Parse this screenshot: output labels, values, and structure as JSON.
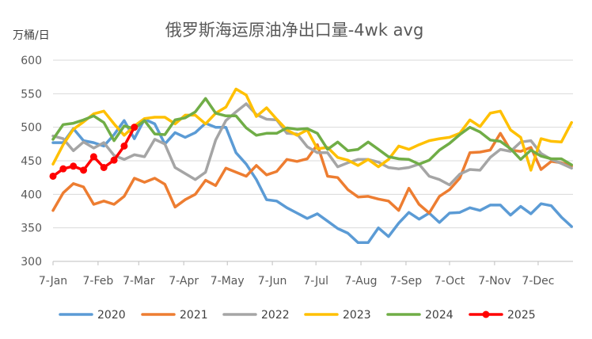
{
  "chart_data": {
    "type": "line",
    "title": "俄罗斯海运原油净出口量-4wk avg",
    "ylabel": "万桶/日",
    "xlabel": "",
    "ylim": [
      300,
      600
    ],
    "yticks": [
      300,
      350,
      400,
      450,
      500,
      550,
      600
    ],
    "xlim": [
      "2025-01-07",
      "2025-12-31"
    ],
    "xtick_labels": [
      "7-Jan",
      "7-Feb",
      "7-Mar",
      "7-Apr",
      "7-May",
      "7-Jun",
      "7-Jul",
      "7-Aug",
      "7-Sep",
      "7-Oct",
      "7-Nov",
      "7-Dec"
    ],
    "xtick_dates": [
      "2025-01-07",
      "2025-02-07",
      "2025-03-07",
      "2025-04-07",
      "2025-05-07",
      "2025-06-07",
      "2025-07-07",
      "2025-08-07",
      "2025-09-07",
      "2025-10-07",
      "2025-11-07",
      "2025-12-07"
    ],
    "grid": true,
    "legend_position": "bottom",
    "series": [
      {
        "name": "2020",
        "color": "#5B9BD5",
        "markers": false,
        "x": [
          "2025-01-07",
          "2025-01-14",
          "2025-01-21",
          "2025-01-28",
          "2025-02-04",
          "2025-02-11",
          "2025-02-18",
          "2025-02-25",
          "2025-03-04",
          "2025-03-11",
          "2025-03-18",
          "2025-03-25",
          "2025-04-01",
          "2025-04-08",
          "2025-04-15",
          "2025-04-22",
          "2025-04-29",
          "2025-05-06",
          "2025-05-13",
          "2025-05-20",
          "2025-05-27",
          "2025-06-03",
          "2025-06-10",
          "2025-06-17",
          "2025-06-24",
          "2025-07-01",
          "2025-07-08",
          "2025-07-15",
          "2025-07-22",
          "2025-07-29",
          "2025-08-05",
          "2025-08-12",
          "2025-08-19",
          "2025-08-26",
          "2025-09-02",
          "2025-09-09",
          "2025-09-16",
          "2025-09-23",
          "2025-09-30",
          "2025-10-07",
          "2025-10-14",
          "2025-10-21",
          "2025-10-28",
          "2025-11-04",
          "2025-11-11",
          "2025-11-18",
          "2025-11-25",
          "2025-12-02",
          "2025-12-09",
          "2025-12-16",
          "2025-12-23",
          "2025-12-30"
        ],
        "values": [
          477,
          477,
          498,
          480,
          477,
          472,
          489,
          510,
          483,
          512,
          505,
          475,
          492,
          485,
          492,
          506,
          500,
          500,
          462,
          445,
          422,
          392,
          390,
          380,
          372,
          364,
          371,
          360,
          349,
          342,
          328,
          328,
          350,
          337,
          357,
          373,
          363,
          372,
          358,
          372,
          373,
          380,
          376,
          384,
          384,
          369,
          382,
          371,
          386,
          383,
          366,
          352
        ]
      },
      {
        "name": "2021",
        "color": "#ED7D31",
        "markers": false,
        "x": [
          "2025-01-07",
          "2025-01-14",
          "2025-01-21",
          "2025-01-28",
          "2025-02-04",
          "2025-02-11",
          "2025-02-18",
          "2025-02-25",
          "2025-03-04",
          "2025-03-11",
          "2025-03-18",
          "2025-03-25",
          "2025-04-01",
          "2025-04-08",
          "2025-04-15",
          "2025-04-22",
          "2025-04-29",
          "2025-05-06",
          "2025-05-13",
          "2025-05-20",
          "2025-05-27",
          "2025-06-03",
          "2025-06-10",
          "2025-06-17",
          "2025-06-24",
          "2025-07-01",
          "2025-07-08",
          "2025-07-15",
          "2025-07-22",
          "2025-07-29",
          "2025-08-05",
          "2025-08-12",
          "2025-08-19",
          "2025-08-26",
          "2025-09-02",
          "2025-09-09",
          "2025-09-16",
          "2025-09-23",
          "2025-09-30",
          "2025-10-07",
          "2025-10-14",
          "2025-10-21",
          "2025-10-28",
          "2025-11-04",
          "2025-11-11",
          "2025-11-18",
          "2025-11-25",
          "2025-12-02",
          "2025-12-09",
          "2025-12-16",
          "2025-12-23",
          "2025-12-30"
        ],
        "values": [
          376,
          402,
          416,
          411,
          385,
          390,
          385,
          397,
          424,
          418,
          424,
          415,
          381,
          392,
          400,
          421,
          413,
          439,
          433,
          427,
          443,
          429,
          434,
          452,
          449,
          453,
          474,
          427,
          425,
          407,
          396,
          397,
          393,
          390,
          376,
          409,
          385,
          372,
          397,
          407,
          424,
          462,
          463,
          466,
          491,
          466,
          464,
          470,
          437,
          449,
          447,
          442
        ]
      },
      {
        "name": "2022",
        "color": "#A5A5A5",
        "markers": false,
        "x": [
          "2025-01-07",
          "2025-01-14",
          "2025-01-21",
          "2025-01-28",
          "2025-02-04",
          "2025-02-11",
          "2025-02-18",
          "2025-02-25",
          "2025-03-04",
          "2025-03-11",
          "2025-03-18",
          "2025-03-25",
          "2025-04-01",
          "2025-04-08",
          "2025-04-15",
          "2025-04-22",
          "2025-04-29",
          "2025-05-06",
          "2025-05-13",
          "2025-05-20",
          "2025-05-27",
          "2025-06-03",
          "2025-06-10",
          "2025-06-17",
          "2025-06-24",
          "2025-07-01",
          "2025-07-08",
          "2025-07-15",
          "2025-07-22",
          "2025-07-29",
          "2025-08-05",
          "2025-08-12",
          "2025-08-19",
          "2025-08-26",
          "2025-09-02",
          "2025-09-09",
          "2025-09-16",
          "2025-09-23",
          "2025-09-30",
          "2025-10-07",
          "2025-10-14",
          "2025-10-21",
          "2025-10-28",
          "2025-11-04",
          "2025-11-11",
          "2025-11-18",
          "2025-11-25",
          "2025-12-02",
          "2025-12-09",
          "2025-12-16",
          "2025-12-23",
          "2025-12-30"
        ],
        "values": [
          487,
          483,
          465,
          478,
          469,
          477,
          458,
          452,
          459,
          456,
          482,
          475,
          440,
          431,
          422,
          433,
          481,
          510,
          523,
          535,
          519,
          512,
          511,
          491,
          490,
          471,
          462,
          462,
          441,
          447,
          452,
          452,
          448,
          440,
          438,
          440,
          445,
          427,
          422,
          414,
          430,
          437,
          436,
          455,
          467,
          464,
          478,
          480,
          461,
          452,
          446,
          439
        ]
      },
      {
        "name": "2023",
        "color": "#FFC000",
        "markers": false,
        "x": [
          "2025-01-07",
          "2025-01-14",
          "2025-01-21",
          "2025-01-28",
          "2025-02-04",
          "2025-02-11",
          "2025-02-18",
          "2025-02-25",
          "2025-03-04",
          "2025-03-11",
          "2025-03-18",
          "2025-03-25",
          "2025-04-01",
          "2025-04-08",
          "2025-04-15",
          "2025-04-22",
          "2025-04-29",
          "2025-05-06",
          "2025-05-13",
          "2025-05-20",
          "2025-05-27",
          "2025-06-03",
          "2025-06-10",
          "2025-06-17",
          "2025-06-24",
          "2025-07-01",
          "2025-07-08",
          "2025-07-15",
          "2025-07-22",
          "2025-07-29",
          "2025-08-05",
          "2025-08-12",
          "2025-08-19",
          "2025-08-26",
          "2025-09-02",
          "2025-09-09",
          "2025-09-16",
          "2025-09-23",
          "2025-09-30",
          "2025-10-07",
          "2025-10-14",
          "2025-10-21",
          "2025-10-28",
          "2025-11-04",
          "2025-11-11",
          "2025-11-18",
          "2025-11-25",
          "2025-12-02",
          "2025-12-09",
          "2025-12-16",
          "2025-12-23",
          "2025-12-30"
        ],
        "values": [
          445,
          474,
          497,
          508,
          520,
          524,
          505,
          488,
          502,
          513,
          515,
          515,
          505,
          518,
          518,
          505,
          521,
          530,
          557,
          548,
          516,
          529,
          512,
          496,
          488,
          496,
          468,
          470,
          455,
          451,
          443,
          452,
          441,
          452,
          472,
          467,
          474,
          480,
          483,
          485,
          491,
          511,
          501,
          521,
          524,
          496,
          485,
          436,
          483,
          479,
          478,
          507
        ]
      },
      {
        "name": "2024",
        "color": "#70AD47",
        "markers": false,
        "x": [
          "2025-01-07",
          "2025-01-14",
          "2025-01-21",
          "2025-01-28",
          "2025-02-04",
          "2025-02-11",
          "2025-02-18",
          "2025-02-25",
          "2025-03-04",
          "2025-03-11",
          "2025-03-18",
          "2025-03-25",
          "2025-04-01",
          "2025-04-08",
          "2025-04-15",
          "2025-04-22",
          "2025-04-29",
          "2025-05-06",
          "2025-05-13",
          "2025-05-20",
          "2025-05-27",
          "2025-06-03",
          "2025-06-10",
          "2025-06-17",
          "2025-06-24",
          "2025-07-01",
          "2025-07-08",
          "2025-07-15",
          "2025-07-22",
          "2025-07-29",
          "2025-08-05",
          "2025-08-12",
          "2025-08-19",
          "2025-08-26",
          "2025-09-02",
          "2025-09-09",
          "2025-09-16",
          "2025-09-23",
          "2025-09-30",
          "2025-10-07",
          "2025-10-14",
          "2025-10-21",
          "2025-10-28",
          "2025-11-04",
          "2025-11-11",
          "2025-11-18",
          "2025-11-25",
          "2025-12-02",
          "2025-12-09",
          "2025-12-16",
          "2025-12-23",
          "2025-12-30"
        ],
        "values": [
          482,
          504,
          506,
          511,
          517,
          507,
          480,
          502,
          498,
          510,
          490,
          489,
          511,
          514,
          523,
          543,
          521,
          517,
          517,
          499,
          488,
          491,
          491,
          499,
          497,
          498,
          491,
          467,
          478,
          465,
          467,
          478,
          467,
          456,
          453,
          452,
          445,
          451,
          466,
          476,
          489,
          500,
          493,
          481,
          479,
          468,
          452,
          466,
          457,
          453,
          453,
          444
        ]
      },
      {
        "name": "2025",
        "color": "#FF0000",
        "markers": true,
        "x": [
          "2025-01-07",
          "2025-01-14",
          "2025-01-21",
          "2025-01-28",
          "2025-02-04",
          "2025-02-11",
          "2025-02-18",
          "2025-02-25",
          "2025-03-04"
        ],
        "values": [
          427,
          438,
          442,
          436,
          456,
          440,
          451,
          472,
          500
        ]
      }
    ]
  }
}
